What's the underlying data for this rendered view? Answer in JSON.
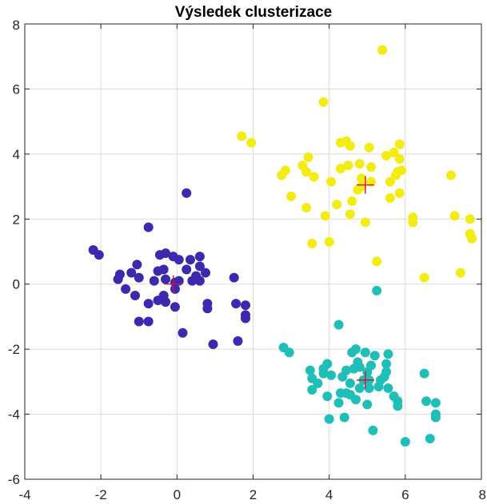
{
  "chart_data": {
    "type": "scatter",
    "title": "Výsledek clusterizace",
    "xlabel": "",
    "ylabel": "",
    "xlim": [
      -4,
      8
    ],
    "ylim": [
      -6,
      8
    ],
    "xticks": [
      -4,
      -2,
      0,
      2,
      4,
      6,
      8
    ],
    "yticks": [
      -6,
      -4,
      -2,
      0,
      2,
      4,
      6,
      8
    ],
    "grid": true,
    "series": [
      {
        "color": "#3b2ab0",
        "points": [
          [
            -2.2,
            1.05
          ],
          [
            -2.05,
            0.9
          ],
          [
            -1.5,
            0.3
          ],
          [
            -1.55,
            0.15
          ],
          [
            -1.2,
            0.35
          ],
          [
            -1.05,
            0.6
          ],
          [
            -1.0,
            0.2
          ],
          [
            -1.35,
            -0.15
          ],
          [
            -1.1,
            -0.35
          ],
          [
            -1.0,
            -1.15
          ],
          [
            -0.75,
            -1.15
          ],
          [
            -0.75,
            -0.6
          ],
          [
            -0.5,
            -0.5
          ],
          [
            -0.35,
            -0.35
          ],
          [
            -0.3,
            -0.55
          ],
          [
            -0.6,
            0.1
          ],
          [
            -0.5,
            0.4
          ],
          [
            -0.35,
            0.45
          ],
          [
            -0.45,
            0.9
          ],
          [
            -0.3,
            0.95
          ],
          [
            -0.1,
            0.85
          ],
          [
            0.05,
            0.75
          ],
          [
            -0.05,
            0.05
          ],
          [
            0.05,
            0.1
          ],
          [
            -0.05,
            -0.15
          ],
          [
            -0.05,
            -0.7
          ],
          [
            0.25,
            0.45
          ],
          [
            0.35,
            0.75
          ],
          [
            0.4,
            0.1
          ],
          [
            0.5,
            0.25
          ],
          [
            0.6,
            0.1
          ],
          [
            0.6,
            0.55
          ],
          [
            0.6,
            0.85
          ],
          [
            0.75,
            0.35
          ],
          [
            0.8,
            -0.6
          ],
          [
            0.8,
            -0.75
          ],
          [
            0.15,
            -1.5
          ],
          [
            0.95,
            -1.85
          ],
          [
            0.25,
            2.8
          ],
          [
            -0.75,
            1.75
          ],
          [
            1.5,
            0.2
          ],
          [
            1.55,
            -0.6
          ],
          [
            1.8,
            -0.65
          ],
          [
            1.8,
            -0.95
          ],
          [
            1.8,
            -1.05
          ],
          [
            1.6,
            -1.75
          ],
          [
            -0.3,
            0.15
          ]
        ]
      },
      {
        "color": "#1fbfb8",
        "points": [
          [
            2.8,
            -1.95
          ],
          [
            2.95,
            -2.1
          ],
          [
            3.5,
            -2.65
          ],
          [
            3.55,
            -2.9
          ],
          [
            3.55,
            -3.25
          ],
          [
            3.7,
            -3.05
          ],
          [
            3.85,
            -2.6
          ],
          [
            3.85,
            -2.75
          ],
          [
            3.95,
            -2.45
          ],
          [
            3.95,
            -3.45
          ],
          [
            4.05,
            -2.8
          ],
          [
            4.0,
            -4.15
          ],
          [
            4.25,
            -3.65
          ],
          [
            4.25,
            -1.25
          ],
          [
            4.35,
            -2.85
          ],
          [
            4.4,
            -4.1
          ],
          [
            4.45,
            -3.35
          ],
          [
            4.45,
            -2.65
          ],
          [
            4.6,
            -2.1
          ],
          [
            4.55,
            -3.05
          ],
          [
            4.55,
            -3.4
          ],
          [
            4.65,
            -2.6
          ],
          [
            4.7,
            -2.0
          ],
          [
            4.75,
            -2.4
          ],
          [
            4.8,
            -2.55
          ],
          [
            4.8,
            -3.2
          ],
          [
            4.9,
            -2.95
          ],
          [
            4.95,
            -2.1
          ],
          [
            5.0,
            -3.7
          ],
          [
            5.0,
            -2.7
          ],
          [
            5.05,
            -3.2
          ],
          [
            5.1,
            -2.5
          ],
          [
            5.15,
            -4.5
          ],
          [
            5.2,
            -2.2
          ],
          [
            5.25,
            -0.2
          ],
          [
            5.3,
            -3.15
          ],
          [
            5.35,
            -2.95
          ],
          [
            5.45,
            -2.85
          ],
          [
            5.5,
            -2.7
          ],
          [
            5.55,
            -2.15
          ],
          [
            5.5,
            -2.45
          ],
          [
            5.55,
            -3.2
          ],
          [
            5.7,
            -3.45
          ],
          [
            5.8,
            -3.6
          ],
          [
            5.8,
            -3.75
          ],
          [
            6.0,
            -4.85
          ],
          [
            6.5,
            -2.75
          ],
          [
            6.55,
            -3.6
          ],
          [
            6.65,
            -4.75
          ],
          [
            6.8,
            -3.65
          ],
          [
            6.8,
            -4.0
          ],
          [
            6.8,
            -4.1
          ],
          [
            4.3,
            -3.35
          ],
          [
            4.7,
            -3.55
          ],
          [
            5.05,
            -2.95
          ]
        ]
      },
      {
        "color": "#f3ec12",
        "points": [
          [
            1.7,
            4.55
          ],
          [
            1.95,
            4.35
          ],
          [
            2.75,
            3.35
          ],
          [
            2.85,
            3.5
          ],
          [
            3.0,
            2.7
          ],
          [
            3.3,
            3.65
          ],
          [
            3.4,
            3.45
          ],
          [
            3.4,
            2.35
          ],
          [
            3.45,
            3.9
          ],
          [
            3.55,
            1.25
          ],
          [
            3.6,
            3.3
          ],
          [
            3.85,
            5.6
          ],
          [
            3.9,
            2.1
          ],
          [
            4.0,
            1.3
          ],
          [
            4.05,
            3.15
          ],
          [
            4.2,
            2.45
          ],
          [
            4.3,
            3.55
          ],
          [
            4.3,
            4.35
          ],
          [
            4.45,
            4.4
          ],
          [
            4.5,
            3.65
          ],
          [
            4.55,
            4.25
          ],
          [
            4.6,
            2.55
          ],
          [
            4.55,
            2.15
          ],
          [
            4.75,
            2.9
          ],
          [
            4.85,
            3.0
          ],
          [
            4.85,
            3.25
          ],
          [
            4.95,
            1.9
          ],
          [
            5.05,
            4.2
          ],
          [
            5.1,
            3.6
          ],
          [
            5.25,
            0.7
          ],
          [
            5.4,
            7.2
          ],
          [
            5.5,
            3.95
          ],
          [
            5.6,
            2.65
          ],
          [
            5.6,
            3.15
          ],
          [
            5.7,
            4.05
          ],
          [
            5.75,
            3.35
          ],
          [
            5.8,
            3.45
          ],
          [
            5.85,
            2.8
          ],
          [
            5.85,
            4.3
          ],
          [
            5.85,
            3.85
          ],
          [
            5.9,
            3.5
          ],
          [
            6.2,
            2.05
          ],
          [
            6.2,
            1.9
          ],
          [
            6.5,
            0.2
          ],
          [
            7.2,
            3.35
          ],
          [
            7.3,
            2.1
          ],
          [
            7.45,
            0.35
          ],
          [
            7.7,
            2.0
          ],
          [
            7.7,
            1.55
          ],
          [
            7.75,
            1.4
          ],
          [
            5.1,
            3.15
          ],
          [
            4.8,
            3.7
          ]
        ]
      }
    ],
    "centroids": [
      [
        -0.1,
        0.0
      ],
      [
        4.95,
        -2.95
      ],
      [
        4.95,
        3.05
      ]
    ]
  }
}
